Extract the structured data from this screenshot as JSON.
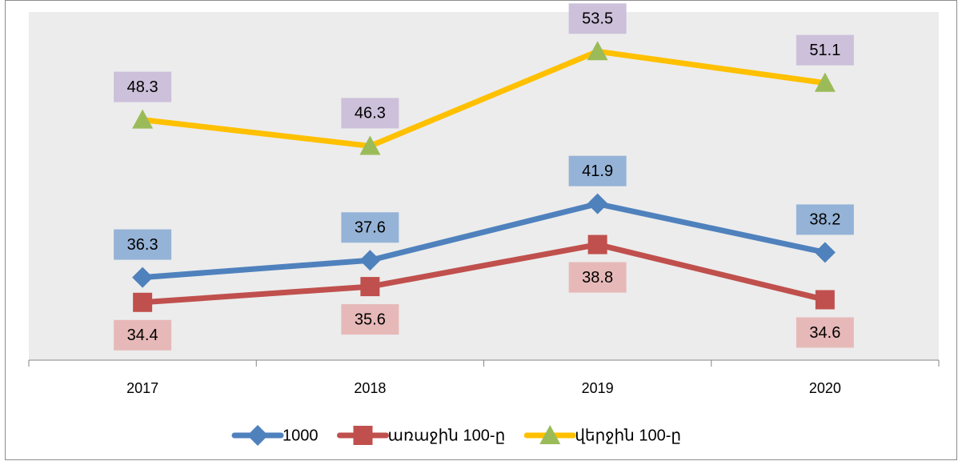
{
  "chart_data": {
    "type": "line",
    "categories": [
      "2017",
      "2018",
      "2019",
      "2020"
    ],
    "series": [
      {
        "name": "1000",
        "color": "#4f81bd",
        "marker": "diamond",
        "label_color": "#95b3d7",
        "label_position": "above",
        "values": [
          36.3,
          37.6,
          41.9,
          38.2
        ]
      },
      {
        "name": "առաջին 100-ը",
        "color": "#c0504d",
        "marker": "square",
        "label_color": "#e6b9b8",
        "label_position": "below",
        "values": [
          34.4,
          35.6,
          38.8,
          34.6
        ]
      },
      {
        "name": "վերջին 100-ը",
        "color": "#ffc000",
        "marker": "triangle",
        "marker_color": "#9bbb59",
        "label_color": "#ccc0da",
        "label_position": "above",
        "values": [
          48.3,
          46.3,
          53.5,
          51.1
        ]
      }
    ],
    "ylim": [
      30,
      56.5
    ],
    "legend": "bottom"
  }
}
